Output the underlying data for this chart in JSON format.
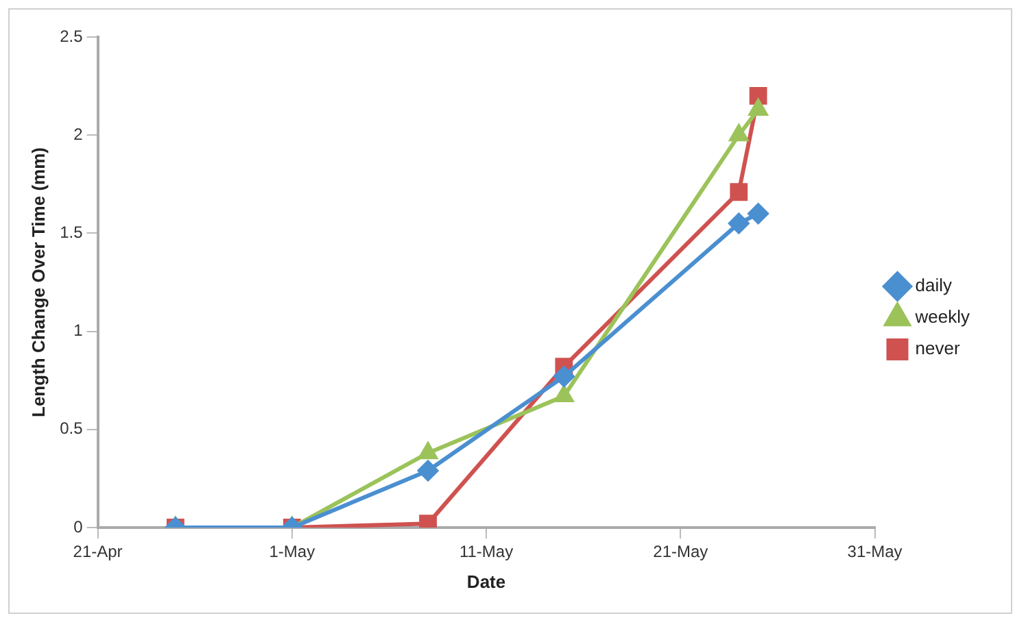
{
  "chart_data": {
    "type": "line",
    "xlabel": "Date",
    "ylabel": "Length Change Over Time (mm)",
    "x": [
      "--04-25",
      "--05-01",
      "--05-08",
      "--05-15",
      "--05-24",
      "--05-25"
    ],
    "series": [
      {
        "name": "daily",
        "color": "#4a8fd0",
        "marker": "diamond",
        "values": [
          0,
          0,
          0.29,
          0.77,
          1.55,
          1.6
        ]
      },
      {
        "name": "weekly",
        "color": "#9bc35a",
        "marker": "triangle",
        "values": [
          0,
          0,
          0.38,
          0.67,
          2.0,
          2.13
        ]
      },
      {
        "name": "never",
        "color": "#cf5250",
        "marker": "square",
        "values": [
          0,
          0,
          0.02,
          0.82,
          1.71,
          2.2
        ]
      }
    ],
    "xlim": [
      "--04-21",
      "--05-31"
    ],
    "xticks": [
      {
        "value": "--04-21",
        "label": "21-Apr"
      },
      {
        "value": "--05-01",
        "label": "1-May"
      },
      {
        "value": "--05-11",
        "label": "11-May"
      },
      {
        "value": "--05-21",
        "label": "21-May"
      },
      {
        "value": "--05-31",
        "label": "31-May"
      }
    ],
    "ylim": [
      0,
      2.5
    ],
    "yticks": [
      0,
      0.5,
      1,
      1.5,
      2,
      2.5
    ],
    "grid": false,
    "legend": "right",
    "line_style": "solid"
  }
}
